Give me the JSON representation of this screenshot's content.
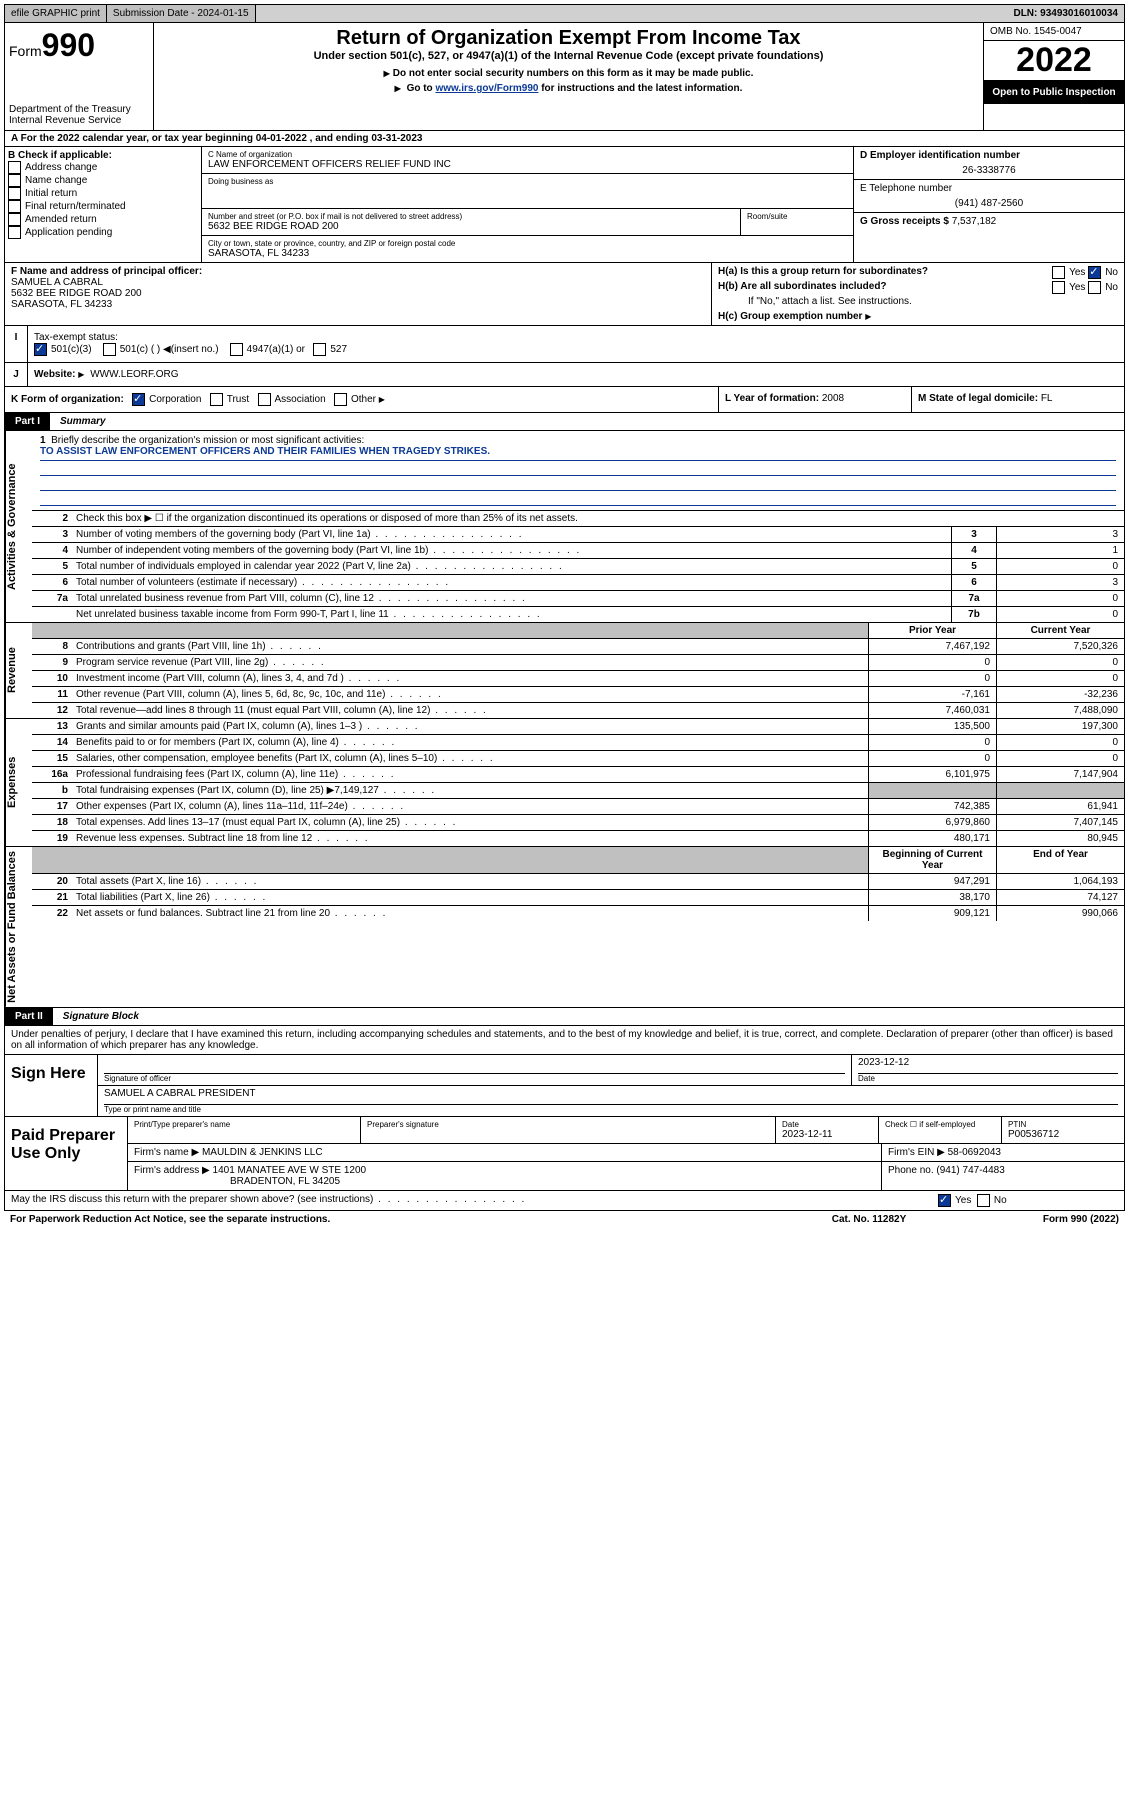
{
  "topbar": {
    "efile": "efile GRAPHIC print",
    "subdate_label": "Submission Date - 2024-01-15",
    "dln": "DLN: 93493016010034"
  },
  "header": {
    "form": "Form",
    "n990": "990",
    "dept": "Department of the Treasury Internal Revenue Service",
    "title": "Return of Organization Exempt From Income Tax",
    "sub1": "Under section 501(c), 527, or 4947(a)(1) of the Internal Revenue Code (except private foundations)",
    "sub2": "Do not enter social security numbers on this form as it may be made public.",
    "sub3_pre": "Go to ",
    "sub3_link": "www.irs.gov/Form990",
    "sub3_post": " for instructions and the latest information.",
    "omb": "OMB No. 1545-0047",
    "year": "2022",
    "otp": "Open to Public Inspection"
  },
  "A": {
    "text": "A For the 2022 calendar year, or tax year beginning 04-01-2022   , and ending 03-31-2023"
  },
  "B": {
    "label": "B Check if applicable:",
    "opts": [
      "Address change",
      "Name change",
      "Initial return",
      "Final return/terminated",
      "Amended return",
      "Application pending"
    ]
  },
  "C": {
    "name_label": "C Name of organization",
    "name": "LAW ENFORCEMENT OFFICERS RELIEF FUND INC",
    "dba_label": "Doing business as",
    "addr_label": "Number and street (or P.O. box if mail is not delivered to street address)",
    "room_label": "Room/suite",
    "addr": "5632 BEE RIDGE ROAD 200",
    "city_label": "City or town, state or province, country, and ZIP or foreign postal code",
    "city": "SARASOTA, FL  34233"
  },
  "D": {
    "ein_label": "D Employer identification number",
    "ein": "26-3338776",
    "phone_label": "E Telephone number",
    "phone": "(941) 487-2560",
    "gross_label": "G Gross receipts $",
    "gross": "7,537,182"
  },
  "F": {
    "label": "F  Name and address of principal officer:",
    "name": "SAMUEL A CABRAL",
    "addr1": "5632 BEE RIDGE ROAD 200",
    "addr2": "SARASOTA, FL  34233"
  },
  "H": {
    "a": "H(a)  Is this a group return for subordinates?",
    "b": "H(b)  Are all subordinates included?",
    "note": "If \"No,\" attach a list. See instructions.",
    "c": "H(c)  Group exemption number",
    "yes": "Yes",
    "no": "No"
  },
  "I": {
    "label": "Tax-exempt status:",
    "o1": "501(c)(3)",
    "o2": "501(c) (  )",
    "o2b": "(insert no.)",
    "o3": "4947(a)(1) or",
    "o4": "527"
  },
  "J": {
    "label": "Website:",
    "val": "WWW.LEORF.ORG"
  },
  "K": {
    "label": "K Form of organization:",
    "c": "Corporation",
    "t": "Trust",
    "a": "Association",
    "o": "Other"
  },
  "L": {
    "label": "L Year of formation:",
    "val": "2008"
  },
  "M": {
    "label": "M State of legal domicile:",
    "val": "FL"
  },
  "part1": {
    "tag": "Part I",
    "title": "Summary"
  },
  "vt": {
    "a": "Activities & Governance",
    "r": "Revenue",
    "e": "Expenses",
    "n": "Net Assets or Fund Balances"
  },
  "s": {
    "q1_label": "Briefly describe the organization's mission or most significant activities:",
    "q1": "TO ASSIST LAW ENFORCEMENT OFFICERS AND THEIR FAMILIES WHEN TRAGEDY STRIKES.",
    "q2": "Check this box ▶ ☐  if the organization discontinued its operations or disposed of more than 25% of its net assets.",
    "r": [
      {
        "n": "3",
        "d": "Number of voting members of the governing body (Part VI, line 1a)",
        "b": "3",
        "v": "3"
      },
      {
        "n": "4",
        "d": "Number of independent voting members of the governing body (Part VI, line 1b)",
        "b": "4",
        "v": "1"
      },
      {
        "n": "5",
        "d": "Total number of individuals employed in calendar year 2022 (Part V, line 2a)",
        "b": "5",
        "v": "0"
      },
      {
        "n": "6",
        "d": "Total number of volunteers (estimate if necessary)",
        "b": "6",
        "v": "3"
      },
      {
        "n": "7a",
        "d": "Total unrelated business revenue from Part VIII, column (C), line 12",
        "b": "7a",
        "v": "0"
      },
      {
        "n": "",
        "d": "Net unrelated business taxable income from Form 990-T, Part I, line 11",
        "b": "7b",
        "v": "0"
      }
    ],
    "py": "Prior Year",
    "cy": "Current Year",
    "rev": [
      {
        "n": "8",
        "d": "Contributions and grants (Part VIII, line 1h)",
        "p": "7,467,192",
        "c": "7,520,326"
      },
      {
        "n": "9",
        "d": "Program service revenue (Part VIII, line 2g)",
        "p": "0",
        "c": "0"
      },
      {
        "n": "10",
        "d": "Investment income (Part VIII, column (A), lines 3, 4, and 7d )",
        "p": "0",
        "c": "0"
      },
      {
        "n": "11",
        "d": "Other revenue (Part VIII, column (A), lines 5, 6d, 8c, 9c, 10c, and 11e)",
        "p": "-7,161",
        "c": "-32,236"
      },
      {
        "n": "12",
        "d": "Total revenue—add lines 8 through 11 (must equal Part VIII, column (A), line 12)",
        "p": "7,460,031",
        "c": "7,488,090"
      }
    ],
    "exp": [
      {
        "n": "13",
        "d": "Grants and similar amounts paid (Part IX, column (A), lines 1–3 )",
        "p": "135,500",
        "c": "197,300"
      },
      {
        "n": "14",
        "d": "Benefits paid to or for members (Part IX, column (A), line 4)",
        "p": "0",
        "c": "0"
      },
      {
        "n": "15",
        "d": "Salaries, other compensation, employee benefits (Part IX, column (A), lines 5–10)",
        "p": "0",
        "c": "0"
      },
      {
        "n": "16a",
        "d": "Professional fundraising fees (Part IX, column (A), line 11e)",
        "p": "6,101,975",
        "c": "7,147,904"
      },
      {
        "n": "b",
        "d": "Total fundraising expenses (Part IX, column (D), line 25) ▶7,149,127",
        "p": "",
        "c": "",
        "shade": true
      },
      {
        "n": "17",
        "d": "Other expenses (Part IX, column (A), lines 11a–11d, 11f–24e)",
        "p": "742,385",
        "c": "61,941"
      },
      {
        "n": "18",
        "d": "Total expenses. Add lines 13–17 (must equal Part IX, column (A), line 25)",
        "p": "6,979,860",
        "c": "7,407,145"
      },
      {
        "n": "19",
        "d": "Revenue less expenses. Subtract line 18 from line 12",
        "p": "480,171",
        "c": "80,945"
      }
    ],
    "bcy": "Beginning of Current Year",
    "eoy": "End of Year",
    "na": [
      {
        "n": "20",
        "d": "Total assets (Part X, line 16)",
        "p": "947,291",
        "c": "1,064,193"
      },
      {
        "n": "21",
        "d": "Total liabilities (Part X, line 26)",
        "p": "38,170",
        "c": "74,127"
      },
      {
        "n": "22",
        "d": "Net assets or fund balances. Subtract line 21 from line 20",
        "p": "909,121",
        "c": "990,066"
      }
    ]
  },
  "part2": {
    "tag": "Part II",
    "title": "Signature Block"
  },
  "pen": "Under penalties of perjury, I declare that I have examined this return, including accompanying schedules and statements, and to the best of my knowledge and belief, it is true, correct, and complete. Declaration of preparer (other than officer) is based on all information of which preparer has any knowledge.",
  "sign": {
    "here": "Sign Here",
    "sig_label": "Signature of officer",
    "date_label": "Date",
    "date": "2023-12-12",
    "officer": "SAMUEL A CABRAL  PRESIDENT",
    "type_label": "Type or print name and title"
  },
  "prep": {
    "label": "Paid Preparer Use Only",
    "h1": "Print/Type preparer's name",
    "h2": "Preparer's signature",
    "h3": "Date",
    "date": "2023-12-11",
    "h4": "Check ☐ if self-employed",
    "h5": "PTIN",
    "ptin": "P00536712",
    "firm_label": "Firm's name    ▶",
    "firm": "MAULDIN & JENKINS LLC",
    "ein_label": "Firm's EIN ▶",
    "ein": "58-0692043",
    "addr_label": "Firm's address ▶",
    "addr1": "1401 MANATEE AVE W STE 1200",
    "addr2": "BRADENTON, FL  34205",
    "phone_label": "Phone no.",
    "phone": "(941) 747-4483"
  },
  "may": {
    "q": "May the IRS discuss this return with the preparer shown above? (see instructions)",
    "yes": "Yes",
    "no": "No"
  },
  "foot": {
    "l": "For Paperwork Reduction Act Notice, see the separate instructions.",
    "c": "Cat. No. 11282Y",
    "r": "Form 990 (2022)"
  }
}
